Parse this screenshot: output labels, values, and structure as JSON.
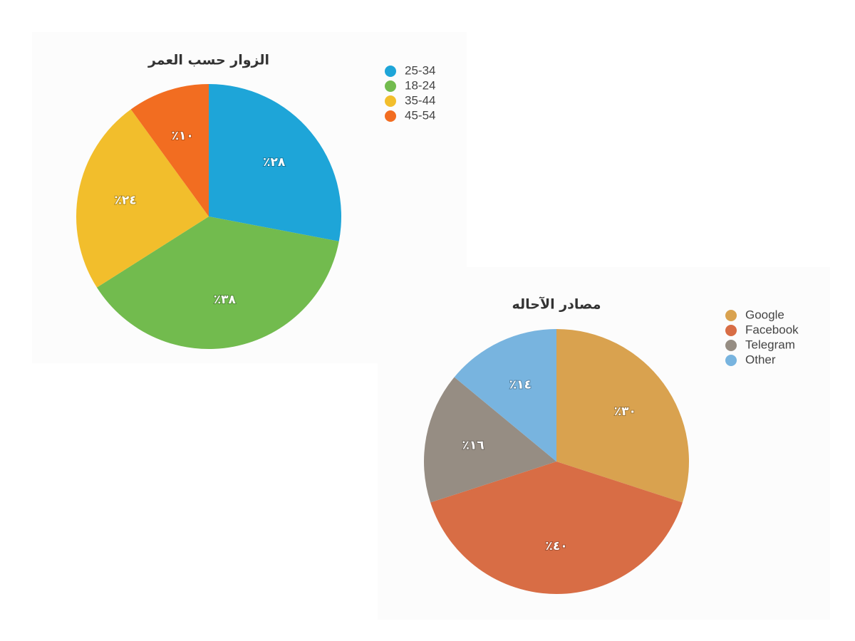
{
  "chart_data": [
    {
      "type": "pie",
      "title": "الزوار حسب العمر",
      "categories": [
        "25-34",
        "18-24",
        "35-44",
        "45-54"
      ],
      "values": [
        28,
        38,
        24,
        10
      ],
      "value_labels": [
        "٪٢٨",
        "٪٣٨",
        "٪٢٤",
        "٪١٠"
      ],
      "colors": [
        "#1ea5d8",
        "#72bb4e",
        "#f2be2c",
        "#f26d21"
      ]
    },
    {
      "type": "pie",
      "title": "مصادر الآحاله",
      "categories": [
        "Google",
        "Facebook",
        "Telegram",
        "Other"
      ],
      "values": [
        30,
        40,
        16,
        14
      ],
      "value_labels": [
        "٪٣٠",
        "٪٤٠",
        "٪١٦",
        "٪١٤"
      ],
      "colors": [
        "#d9a24f",
        "#d86d45",
        "#968d83",
        "#78b4df"
      ]
    }
  ]
}
